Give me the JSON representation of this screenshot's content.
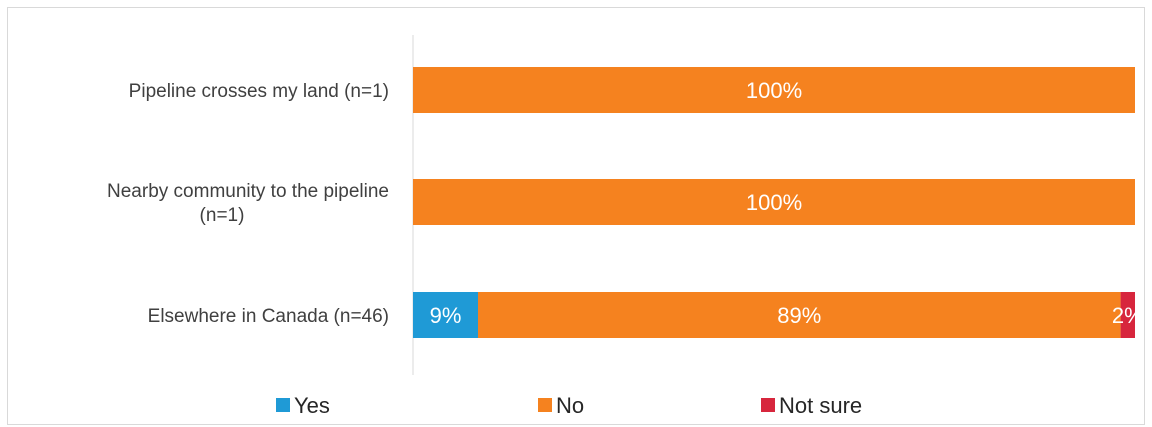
{
  "chart_data": {
    "type": "bar",
    "orientation": "horizontal",
    "stacked": true,
    "categories": [
      [
        "Pipeline crosses my land (n=1)"
      ],
      [
        "Nearby community to the pipeline",
        "(n=1)"
      ],
      [
        "Elsewhere in Canada (n=46)"
      ]
    ],
    "series": [
      {
        "name": "Yes",
        "color": "#1f9ad6",
        "values": [
          0,
          0,
          9
        ]
      },
      {
        "name": "No",
        "color": "#f5821f",
        "values": [
          100,
          100,
          89
        ]
      },
      {
        "name": "Not sure",
        "color": "#d7263d",
        "values": [
          0,
          0,
          2
        ]
      }
    ],
    "value_suffix": "%",
    "xlim": [
      0,
      100
    ],
    "grid": false,
    "legend_position": "bottom"
  }
}
